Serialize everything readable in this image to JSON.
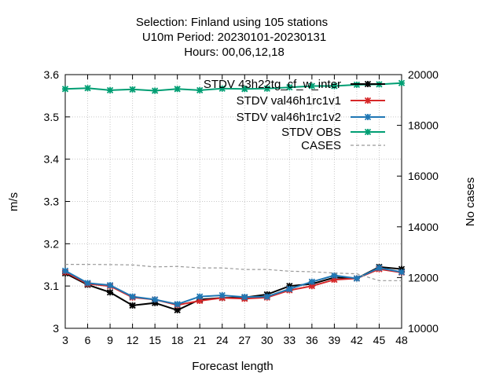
{
  "chart_data": {
    "type": "line",
    "title_lines": [
      "Selection: Finland using   105 stations",
      "U10m   Period: 20230101-20230131",
      "Hours:  00,06,12,18"
    ],
    "xlabel": "Forecast length",
    "ylabel": "m/s",
    "y2label": "No cases",
    "x": [
      3,
      6,
      9,
      12,
      15,
      18,
      21,
      24,
      27,
      30,
      33,
      36,
      39,
      42,
      45,
      48
    ],
    "xlim": [
      3,
      48
    ],
    "ylim": [
      3.0,
      3.6
    ],
    "y2lim": [
      10000,
      20000
    ],
    "x_ticks": [
      "3",
      "6",
      "9",
      "12",
      "15",
      "18",
      "21",
      "24",
      "27",
      "30",
      "33",
      "36",
      "39",
      "42",
      "45",
      "48"
    ],
    "y_ticks": [
      "3",
      "3.1",
      "3.2",
      "3.3",
      "3.4",
      "3.5",
      "3.6"
    ],
    "y2_ticks": [
      "10000",
      "12000",
      "14000",
      "16000",
      "18000",
      "20000"
    ],
    "grid": true,
    "legend_position": "top-right",
    "series": [
      {
        "name": "STDV 43h22_cf_w_inter",
        "legend_label": "STDV 43h22tg_cf_w_inter",
        "color": "#000000",
        "marker": "x-star",
        "axis": "y",
        "values": [
          3.13,
          3.103,
          3.085,
          3.054,
          3.06,
          3.043,
          3.068,
          3.072,
          3.073,
          3.08,
          3.1,
          3.105,
          3.12,
          3.118,
          3.145,
          3.14
        ]
      },
      {
        "name": "STDV val_4 6h1_r c1_v 1",
        "legend_label": "STDV val46h1rc1v1",
        "color": "#d62728",
        "marker": "x-star",
        "axis": "y",
        "values": [
          3.133,
          3.105,
          3.1,
          3.073,
          3.068,
          3.055,
          3.065,
          3.072,
          3.07,
          3.073,
          3.09,
          3.1,
          3.115,
          3.118,
          3.14,
          3.132
        ]
      },
      {
        "name": "STDV val_4 6h1_r c1_v 2",
        "legend_label": "STDV val46h1rc1v2",
        "color": "#1f77b4",
        "marker": "x-star",
        "axis": "y",
        "values": [
          3.136,
          3.107,
          3.102,
          3.075,
          3.068,
          3.057,
          3.075,
          3.078,
          3.074,
          3.075,
          3.093,
          3.11,
          3.125,
          3.118,
          3.143,
          3.133
        ]
      },
      {
        "name": "STDV OBS",
        "legend_label": "STDV OBS",
        "color": "#009e73",
        "marker": "x-star",
        "axis": "y",
        "values": [
          3.566,
          3.568,
          3.563,
          3.565,
          3.562,
          3.566,
          3.563,
          3.567,
          3.566,
          3.567,
          3.57,
          3.573,
          3.573,
          3.576,
          3.577,
          3.58
        ]
      },
      {
        "name": "CASES",
        "legend_label": "CASES",
        "color": "#999999",
        "dashed": true,
        "axis": "y2",
        "values": [
          12520,
          12520,
          12510,
          12500,
          12420,
          12440,
          12380,
          12380,
          12320,
          12320,
          12250,
          12230,
          12180,
          12150,
          11880,
          11880
        ]
      }
    ]
  }
}
